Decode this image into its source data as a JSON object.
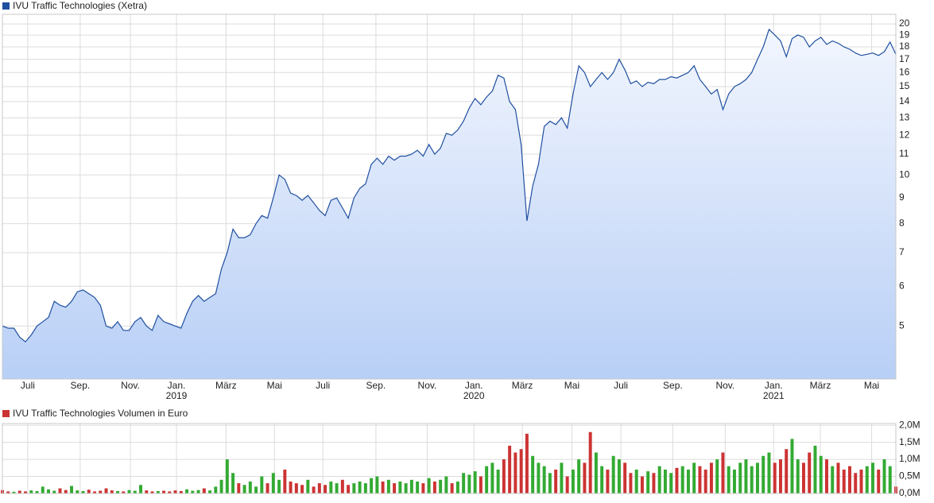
{
  "chart_data": [
    {
      "type": "line",
      "log": true,
      "grid": true,
      "fill": true,
      "series": [
        {
          "name": "IVU Traffic Technologies (Xetra)",
          "color": "#1f4fa0",
          "values": [
            5.0,
            4.95,
            4.95,
            4.75,
            4.65,
            4.8,
            5.0,
            5.1,
            5.2,
            5.6,
            5.5,
            5.45,
            5.6,
            5.85,
            5.9,
            5.8,
            5.7,
            5.5,
            5.0,
            4.95,
            5.1,
            4.9,
            4.9,
            5.1,
            5.2,
            5.0,
            4.9,
            5.25,
            5.1,
            5.05,
            5.0,
            4.95,
            5.3,
            5.6,
            5.75,
            5.6,
            5.7,
            5.8,
            6.5,
            7.0,
            7.8,
            7.5,
            7.5,
            7.6,
            8.0,
            8.3,
            8.2,
            9.0,
            10.0,
            9.8,
            9.2,
            9.1,
            8.9,
            9.1,
            8.8,
            8.5,
            8.3,
            8.9,
            9.0,
            8.6,
            8.2,
            9.0,
            9.4,
            9.6,
            10.5,
            10.8,
            10.5,
            10.9,
            10.7,
            10.9,
            10.9,
            11.0,
            11.2,
            10.9,
            11.5,
            11.0,
            11.3,
            12.1,
            12.0,
            12.3,
            12.8,
            13.6,
            14.2,
            13.8,
            14.3,
            14.7,
            15.8,
            15.6,
            14.0,
            13.5,
            11.5,
            8.1,
            9.5,
            10.5,
            12.5,
            12.8,
            12.6,
            13.0,
            12.4,
            14.5,
            16.5,
            16.0,
            15.0,
            15.5,
            16.0,
            15.5,
            16.0,
            17.0,
            16.2,
            15.2,
            15.4,
            15.0,
            15.3,
            15.2,
            15.5,
            15.5,
            15.7,
            15.6,
            15.8,
            16.0,
            16.5,
            15.5,
            15.0,
            14.5,
            14.8,
            13.5,
            14.5,
            15.0,
            15.2,
            15.5,
            16.0,
            17.0,
            18.0,
            19.5,
            19.0,
            18.5,
            17.2,
            18.7,
            19.0,
            18.8,
            18.0,
            18.5,
            18.8,
            18.2,
            18.5,
            18.3,
            18.0,
            17.8,
            17.5,
            17.3,
            17.4,
            17.5,
            17.3,
            17.6,
            18.4,
            17.4
          ]
        }
      ],
      "xlim": [
        0,
        155
      ],
      "xticks": [
        {
          "value": 4.4,
          "label": "Juli"
        },
        {
          "value": 13.5,
          "label": "Sep."
        },
        {
          "value": 22.2,
          "label": "Nov."
        },
        {
          "value": 30.2,
          "label": "Jan.",
          "year": "2019"
        },
        {
          "value": 38.8,
          "label": "März"
        },
        {
          "value": 47.2,
          "label": "Mai"
        },
        {
          "value": 55.6,
          "label": "Juli"
        },
        {
          "value": 64.8,
          "label": "Sep."
        },
        {
          "value": 73.7,
          "label": "Nov."
        },
        {
          "value": 81.8,
          "label": "Jan.",
          "year": "2020"
        },
        {
          "value": 90.2,
          "label": "März"
        },
        {
          "value": 98.8,
          "label": "Mai"
        },
        {
          "value": 107.3,
          "label": "Juli"
        },
        {
          "value": 116.3,
          "label": "Sep."
        },
        {
          "value": 125.4,
          "label": "Nov."
        },
        {
          "value": 133.8,
          "label": "Jan.",
          "year": "2021"
        },
        {
          "value": 141.9,
          "label": "März"
        },
        {
          "value": 150.8,
          "label": "Mai"
        }
      ],
      "ylim": [
        3.92,
        20.9
      ],
      "yticks": [
        5,
        6,
        7,
        8,
        9,
        10,
        11,
        12,
        13,
        14,
        15,
        16,
        17,
        18,
        19,
        20
      ]
    },
    {
      "type": "bar",
      "grid": true,
      "series": [
        {
          "name": "IVU Traffic Technologies Volumen in Euro",
          "color": "#cc3333",
          "values": [
            100000,
            60000,
            50000,
            80000,
            60000,
            90000,
            70000,
            200000,
            120000,
            80000,
            150000,
            100000,
            220000,
            90000,
            70000,
            110000,
            60000,
            80000,
            150000,
            90000,
            70000,
            60000,
            100000,
            80000,
            250000,
            90000,
            60000,
            70000,
            80000,
            60000,
            90000,
            70000,
            120000,
            80000,
            100000,
            150000,
            90000,
            200000,
            400000,
            1000000,
            600000,
            300000,
            250000,
            350000,
            200000,
            500000,
            300000,
            600000,
            400000,
            700000,
            350000,
            300000,
            250000,
            400000,
            200000,
            300000,
            250000,
            350000,
            300000,
            400000,
            250000,
            300000,
            350000,
            300000,
            450000,
            500000,
            350000,
            400000,
            300000,
            350000,
            300000,
            400000,
            350000,
            300000,
            450000,
            350000,
            400000,
            500000,
            300000,
            350000,
            600000,
            550000,
            650000,
            500000,
            800000,
            900000,
            700000,
            1000000,
            1400000,
            1200000,
            1300000,
            1750000,
            1100000,
            900000,
            800000,
            600000,
            700000,
            900000,
            500000,
            700000,
            1000000,
            900000,
            1800000,
            1200000,
            800000,
            700000,
            1100000,
            1000000,
            900000,
            600000,
            700000,
            500000,
            650000,
            600000,
            800000,
            700000,
            600000,
            750000,
            800000,
            700000,
            900000,
            800000,
            700000,
            900000,
            1000000,
            1200000,
            800000,
            700000,
            900000,
            1000000,
            800000,
            900000,
            1100000,
            1200000,
            900000,
            1000000,
            1300000,
            1600000,
            1000000,
            900000,
            1200000,
            1400000,
            1100000,
            1000000,
            800000,
            900000,
            700000,
            800000,
            600000,
            700000,
            800000,
            900000,
            700000,
            1000000,
            800000,
            200000
          ]
        }
      ],
      "up_color": "#33aa33",
      "down_color": "#cc3333",
      "xlim": [
        0,
        155
      ],
      "ylim": [
        0,
        2050000
      ],
      "yticks": [
        {
          "value": 0,
          "label": "0,0M"
        },
        {
          "value": 500000,
          "label": "0,5M"
        },
        {
          "value": 1000000,
          "label": "1,0M"
        },
        {
          "value": 1500000,
          "label": "1,5M"
        },
        {
          "value": 2000000,
          "label": "2,0M"
        }
      ]
    }
  ]
}
